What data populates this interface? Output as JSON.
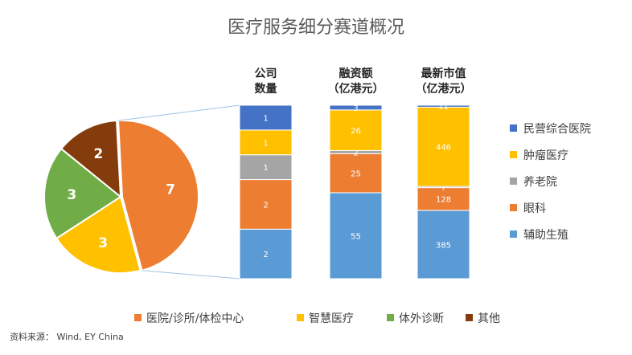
{
  "colors": {
    "hospital": "#ED7D31",
    "smart": "#FFC000",
    "ivd": "#70AD47",
    "other": "#843C0C",
    "private_general": "#4472C4",
    "oncology": "#FFC000",
    "elderly": "#A5A5A5",
    "ophthalmology": "#ED7D31",
    "assisted_reproduction": "#5B9BD5"
  },
  "chart_data": [
    {
      "type": "pie",
      "title": "医疗服务细分赛道概况",
      "slices": [
        {
          "key": "hospital",
          "label": "医院/诊所/体检中心",
          "value": 7
        },
        {
          "key": "smart",
          "label": "智慧医疗",
          "value": 3
        },
        {
          "key": "ivd",
          "label": "体外诊断",
          "value": 3
        },
        {
          "key": "other",
          "label": "其他",
          "value": 2
        }
      ]
    },
    {
      "type": "bar",
      "stacked": true,
      "categories": [
        "公司\n数量",
        "融资额\n（亿港元）",
        "最新市值\n（亿港元）"
      ],
      "series": [
        {
          "key": "assisted_reproduction",
          "name": "辅助生殖",
          "values": [
            2,
            55,
            385
          ]
        },
        {
          "key": "ophthalmology",
          "name": "眼科",
          "values": [
            2,
            25,
            128
          ]
        },
        {
          "key": "elderly",
          "name": "养老院",
          "values": [
            1,
            2,
            7
          ]
        },
        {
          "key": "oncology",
          "name": "肿瘤医疗",
          "values": [
            1,
            26,
            446
          ]
        },
        {
          "key": "private_general",
          "name": "民营综合医院",
          "values": [
            1,
            3,
            11
          ]
        }
      ]
    }
  ],
  "source": "资料来源： Wind, EY China"
}
